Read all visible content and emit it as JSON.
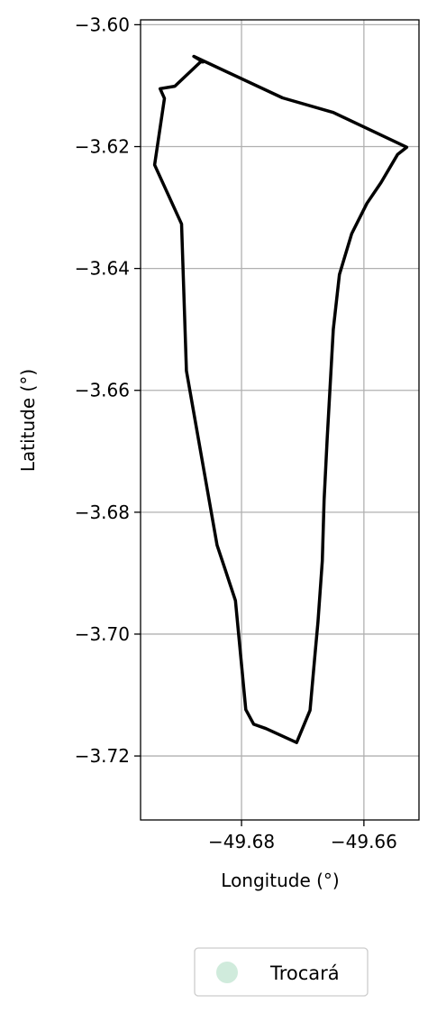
{
  "chart_data": {
    "type": "line",
    "xlabel": "Longitude (°)",
    "ylabel": "Latitude (°)",
    "xlim": [
      -49.6965,
      -49.651
    ],
    "ylim": [
      -3.7305,
      -3.5992
    ],
    "xticks": [
      {
        "value": -49.68,
        "label": "−49.68"
      },
      {
        "value": -49.66,
        "label": "−49.66"
      }
    ],
    "yticks": [
      {
        "value": -3.6,
        "label": "−3.60"
      },
      {
        "value": -3.62,
        "label": "−3.62"
      },
      {
        "value": -3.64,
        "label": "−3.64"
      },
      {
        "value": -3.66,
        "label": "−3.66"
      },
      {
        "value": -3.68,
        "label": "−3.68"
      },
      {
        "value": -3.7,
        "label": "−3.70"
      },
      {
        "value": -3.72,
        "label": "−3.72"
      }
    ],
    "grid": true,
    "legend": {
      "placement": "below",
      "entries": [
        {
          "label": "Trocará",
          "color": "#d0ebdc"
        }
      ]
    },
    "boundary": {
      "color": "#000000",
      "x": [
        -49.6863,
        -49.6878,
        -49.6733,
        -49.665,
        -49.653,
        -49.6545,
        -49.6572,
        -49.6595,
        -49.662,
        -49.664,
        -49.665,
        -49.6655,
        -49.666,
        -49.6665,
        -49.6668,
        -49.6675,
        -49.668,
        -49.6688,
        -49.671,
        -49.676,
        -49.678,
        -49.6793,
        -49.681,
        -49.6827,
        -49.684,
        -49.689,
        -49.6898,
        -49.6942,
        -49.6926,
        -49.6933,
        -49.6909,
        -49.6867,
        -49.6863
      ],
      "y": [
        -3.6061,
        -3.6052,
        -3.612,
        -3.6144,
        -3.6201,
        -3.6213,
        -3.6259,
        -3.6293,
        -3.6343,
        -3.641,
        -3.65,
        -3.659,
        -3.668,
        -3.678,
        -3.688,
        -3.698,
        -3.7035,
        -3.7125,
        -3.7178,
        -3.7155,
        -3.7148,
        -3.7124,
        -3.6945,
        -3.6893,
        -3.6854,
        -3.6568,
        -3.6327,
        -3.623,
        -3.6121,
        -3.6105,
        -3.6101,
        -3.6061,
        -3.6061
      ]
    }
  }
}
